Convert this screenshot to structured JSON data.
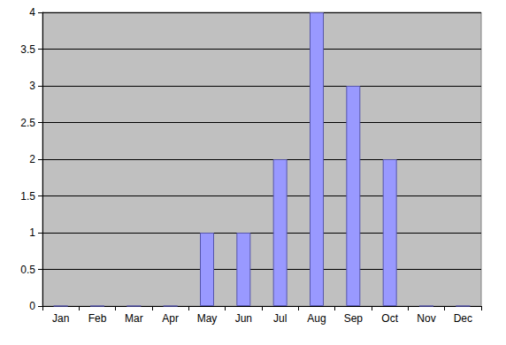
{
  "chart_data": {
    "type": "bar",
    "categories": [
      "Jan",
      "Feb",
      "Mar",
      "Apr",
      "May",
      "Jun",
      "Jul",
      "Aug",
      "Sep",
      "Oct",
      "Nov",
      "Dec"
    ],
    "values": [
      0,
      0,
      0,
      0,
      1,
      1,
      2,
      4,
      3,
      2,
      0,
      0
    ],
    "color": "#9999ff",
    "ylim": [
      0,
      4
    ],
    "yticks": [
      0,
      0.5,
      1,
      1.5,
      2,
      2.5,
      3,
      3.5,
      4
    ],
    "grid": true
  }
}
